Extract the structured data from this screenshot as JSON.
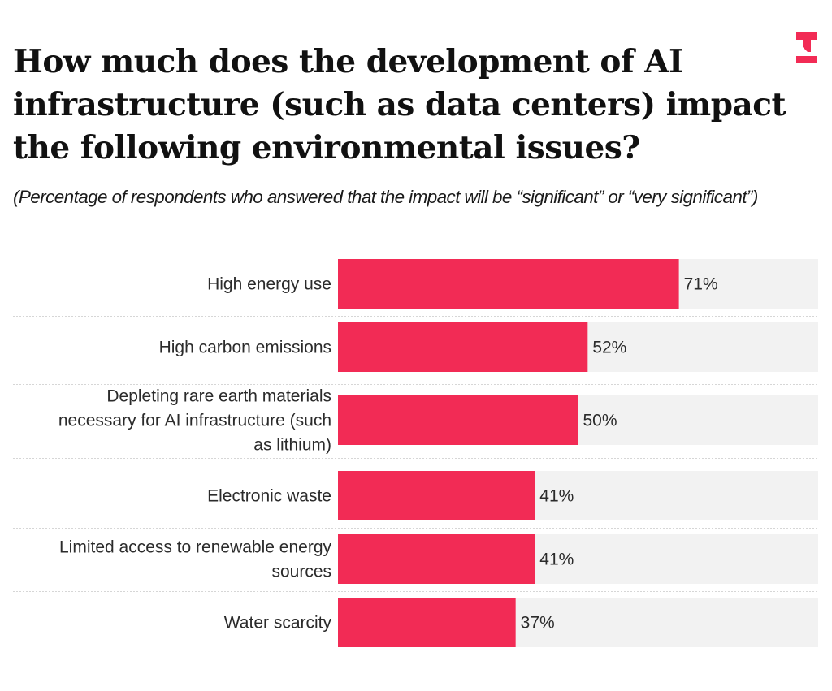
{
  "brand": {
    "logo_icon": "t-logo-icon",
    "accent_color": "#f22b55"
  },
  "title": "How much does the development of AI infrastructure (such as data centers) impact the following environmental issues?",
  "subtitle": "(Percentage of respondents who answered that the impact will be “significant” or “very significant”)",
  "chart_data": {
    "type": "bar",
    "orientation": "horizontal",
    "title": "How much does the development of AI infrastructure (such as data centers) impact the following environmental issues?",
    "subtitle": "(Percentage of respondents who answered that the impact will be “significant” or “very significant”)",
    "xlabel": "",
    "ylabel": "",
    "xlim": [
      0,
      100
    ],
    "unit": "%",
    "grid": false,
    "legend": "none",
    "bar_color": "#f22b55",
    "track_color": "#f2f2f2",
    "categories": [
      [
        "High energy use"
      ],
      [
        "High carbon emissions"
      ],
      [
        "Depleting rare earth materials",
        "necessary for AI infrastructure (such",
        "as lithium)"
      ],
      [
        "Electronic waste"
      ],
      [
        "Limited access to renewable energy",
        "sources"
      ],
      [
        "Water scarcity"
      ]
    ],
    "values": [
      71,
      52,
      50,
      41,
      41,
      37
    ],
    "value_labels": [
      "71%",
      "52%",
      "50%",
      "41%",
      "41%",
      "37%"
    ]
  }
}
